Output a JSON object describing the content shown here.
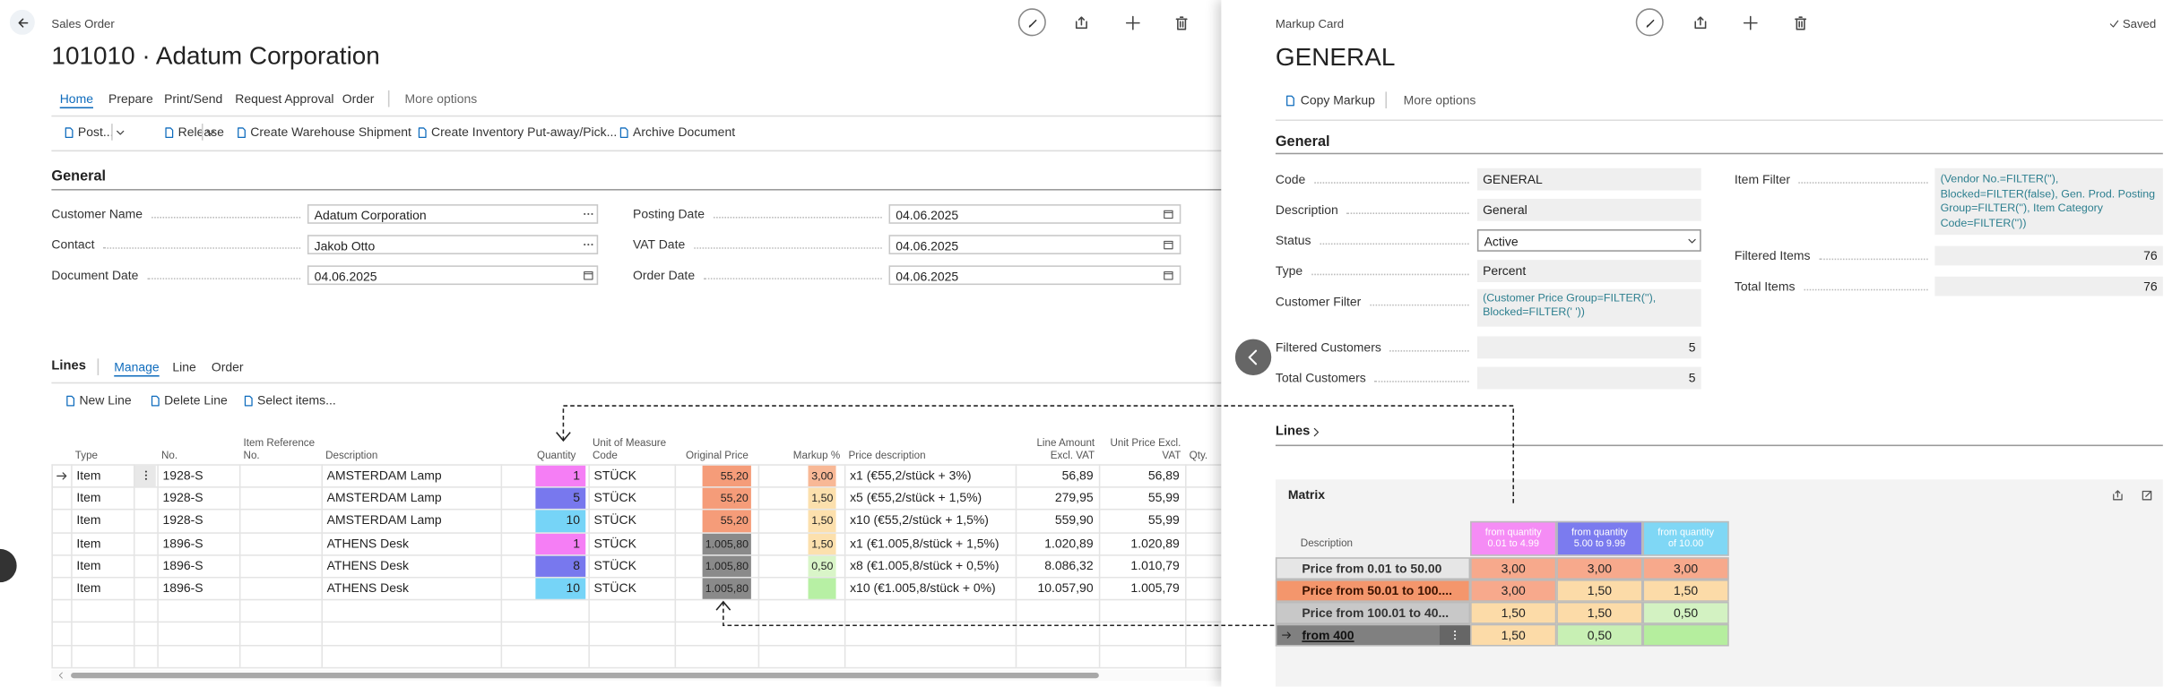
{
  "sales_order": {
    "breadcrumb": "Sales Order",
    "title": "101010 · Adatum Corporation",
    "tabs": [
      "Home",
      "Prepare",
      "Print/Send",
      "Request Approval",
      "Order",
      "More options"
    ],
    "actions": [
      "Post...",
      "Release",
      "Create Warehouse Shipment",
      "Create Inventory Put-away/Pick...",
      "Archive Document"
    ],
    "general": {
      "heading": "General",
      "fields_left": [
        {
          "label": "Customer Name",
          "value": "Adatum Corporation"
        },
        {
          "label": "Contact",
          "value": "Jakob Otto"
        },
        {
          "label": "Document Date",
          "value": "04.06.2025"
        }
      ],
      "fields_right": [
        {
          "label": "Posting Date",
          "value": "04.06.2025"
        },
        {
          "label": "VAT Date",
          "value": "04.06.2025"
        },
        {
          "label": "Order Date",
          "value": "04.06.2025"
        }
      ]
    },
    "lines": {
      "heading": "Lines",
      "tabs": [
        "Manage",
        "Line",
        "Order"
      ],
      "actions": [
        "New Line",
        "Delete Line",
        "Select items..."
      ],
      "columns": {
        "type": "Type",
        "no": "No.",
        "item_reference": "Item Reference No.",
        "description": "Description",
        "quantity": "Quantity",
        "uom": "Unit of Measure Code",
        "original_price": "Original Price",
        "markup": "Markup %",
        "price_description": "Price description",
        "line_amount": "Line Amount Excl. VAT",
        "unit_price": "Unit Price Excl. VAT",
        "qty": "Qty."
      },
      "rows": [
        {
          "type": "Item",
          "no": "1928-S",
          "description": "AMSTERDAM Lamp",
          "quantity": 1,
          "uom": "STÜCK",
          "original_price": "55,20",
          "markup": "3,00",
          "price_description": "x1 (€55,2/stück + 3%)",
          "line_amount": "56,89",
          "unit_price": "56,89",
          "quantity_color": "#f57ef5",
          "price_color": "#f59c79",
          "markup_color": "#f8b896"
        },
        {
          "type": "Item",
          "no": "1928-S",
          "description": "AMSTERDAM Lamp",
          "quantity": 5,
          "uom": "STÜCK",
          "original_price": "55,20",
          "markup": "1,50",
          "price_description": "x5 (€55,2/stück + 1,5%)",
          "line_amount": "279,95",
          "unit_price": "55,99",
          "quantity_color": "#7878ee",
          "price_color": "#f59c79",
          "markup_color": "#fce0ad"
        },
        {
          "type": "Item",
          "no": "1928-S",
          "description": "AMSTERDAM Lamp",
          "quantity": 10,
          "uom": "STÜCK",
          "original_price": "55,20",
          "markup": "1,50",
          "price_description": "x10 (€55,2/stück + 1,5%)",
          "line_amount": "559,90",
          "unit_price": "55,99",
          "quantity_color": "#76d4f7",
          "price_color": "#f59c79",
          "markup_color": "#fce0ad"
        },
        {
          "type": "Item",
          "no": "1896-S",
          "description": "ATHENS Desk",
          "quantity": 1,
          "uom": "STÜCK",
          "original_price": "1.005,80",
          "markup": "1,50",
          "price_description": "x1 (€1.005,8/stück + 1,5%)",
          "line_amount": "1.020,89",
          "unit_price": "1.020,89",
          "quantity_color": "#f57ef5",
          "price_color": "#8a8a8a",
          "markup_color": "#fce0ad"
        },
        {
          "type": "Item",
          "no": "1896-S",
          "description": "ATHENS Desk",
          "quantity": 8,
          "uom": "STÜCK",
          "original_price": "1.005,80",
          "markup": "0,50",
          "price_description": "x8 (€1.005,8/stück + 0,5%)",
          "line_amount": "8.086,32",
          "unit_price": "1.010,79",
          "quantity_color": "#7878ee",
          "price_color": "#8a8a8a",
          "markup_color": "#d9f5c8"
        },
        {
          "type": "Item",
          "no": "1896-S",
          "description": "ATHENS Desk",
          "quantity": 10,
          "uom": "STÜCK",
          "original_price": "1.005,80",
          "markup": null,
          "price_description": "x10 (€1.005,8/stück + 0%)",
          "line_amount": "10.057,90",
          "unit_price": "1.005,79",
          "quantity_color": "#76d4f7",
          "price_color": "#8a8a8a",
          "markup_color": "#b7f0a4"
        }
      ]
    }
  },
  "markup_card": {
    "breadcrumb": "Markup Card",
    "status": "Saved",
    "title": "GENERAL",
    "actions": [
      "Copy Markup",
      "More options"
    ],
    "general": {
      "heading": "General",
      "fields_left": [
        {
          "label": "Code",
          "value": "GENERAL"
        },
        {
          "label": "Description",
          "value": "General"
        },
        {
          "label": "Status",
          "value": "Active"
        },
        {
          "label": "Type",
          "value": "Percent"
        },
        {
          "label": "Customer Filter",
          "value": "(Customer Price Group=FILTER(''), Blocked=FILTER(' '))"
        },
        {
          "label": "Filtered Customers",
          "value": 5
        },
        {
          "label": "Total Customers",
          "value": 5
        }
      ],
      "fields_right": [
        {
          "label": "Item Filter",
          "value": "(Vendor No.=FILTER(''), Blocked=FILTER(false), Gen. Prod. Posting Group=FILTER(''), Item Category Code=FILTER(''))"
        },
        {
          "label": "Filtered Items",
          "value": 76
        },
        {
          "label": "Total Items",
          "value": 76
        }
      ]
    },
    "lines_heading": "Lines",
    "matrix": {
      "title": "Matrix",
      "description_header": "Description",
      "columns": [
        {
          "label": "from quantity 0.01 to 4.99",
          "color": "#f58cf5"
        },
        {
          "label": "from quantity 5.00 to 9.99",
          "color": "#7b7bef"
        },
        {
          "label": "from quantity of 10.00",
          "color": "#7fd7f5"
        }
      ],
      "rows": [
        {
          "description": "Price from 0.01 to 50.00",
          "color": "#e6e6e6",
          "values": [
            "3,00",
            "3,00",
            "3,00"
          ],
          "colors": [
            "#f7a98c",
            "#f7a98c",
            "#f7a98c"
          ]
        },
        {
          "description": "Price from 50.01 to 100....",
          "color": "#f4966c",
          "values": [
            "3,00",
            "1,50",
            "1,50"
          ],
          "colors": [
            "#f7a98c",
            "#fcdba8",
            "#fcdba8"
          ]
        },
        {
          "description": "Price from 100.01 to 40...",
          "color": "#c8c8c8",
          "values": [
            "1,50",
            "1,50",
            "0,50"
          ],
          "colors": [
            "#fcdba8",
            "#fcdba8",
            "#d3f2c2"
          ]
        },
        {
          "description": "from 400",
          "color": "#808080",
          "values": [
            "1,50",
            "0,50",
            null
          ],
          "colors": [
            "#fcdba8",
            "#c8f0b4",
            "#b5ee9e"
          ]
        }
      ]
    }
  }
}
